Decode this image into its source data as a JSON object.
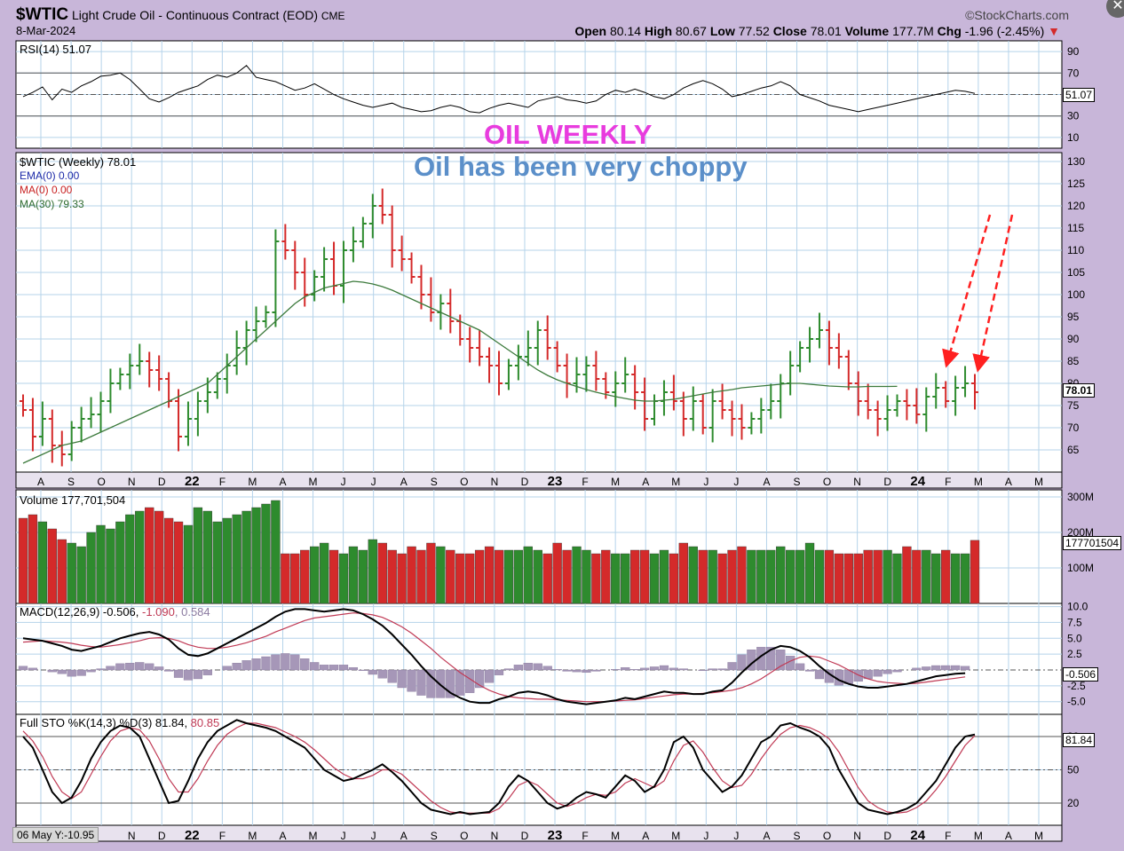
{
  "header": {
    "symbol": "$WTIC",
    "name": "Light Crude Oil - Continuous Contract (EOD)",
    "exchange": "CME",
    "date": "8-Mar-2024",
    "brand": "©StockCharts.com",
    "open_label": "Open",
    "open": "80.14",
    "high_label": "High",
    "high": "80.67",
    "low_label": "Low",
    "low": "77.52",
    "close_label": "Close",
    "close": "78.01",
    "volume_label": "Volume",
    "volume": "177.7M",
    "chg_label": "Chg",
    "chg": "-1.96 (-2.45%)",
    "chg_arrow": "▼"
  },
  "annotations": {
    "title": "OIL WEEKLY",
    "subtitle": "Oil has been very choppy",
    "title_color": "#e83cde",
    "subtitle_color": "#5b8fc9",
    "arrow_color": "#ff2020"
  },
  "colors": {
    "up": "#2e8b2e",
    "down": "#d42a2a",
    "ma": "#3c7a3c",
    "macd": "#000000",
    "signal": "#c03a55",
    "hist": "#a697b8",
    "grid": "#b5d3ea",
    "panel_bg": "#ffffff",
    "frame_bg": "#c8b6d9"
  },
  "legends": {
    "rsi": "RSI(14) 51.07",
    "price": "$WTIC (Weekly) 78.01",
    "ema": "EMA(0) 0.00",
    "ma0": "MA(0) 0.00",
    "ma30": "MA(30) 79.33",
    "volume": "Volume 177,701,504",
    "macd_a": "MACD(12,26,9) -0.506, ",
    "macd_b": "-1.090",
    "macd_c": ", 0.584",
    "sto_a": "Full STO %K(14,3) %D(3) 81.84, ",
    "sto_b": "80.85"
  },
  "last_values": {
    "rsi": "51.07",
    "price": "78.01",
    "volume": "177701504",
    "macd": "-0.506",
    "sto": "81.84"
  },
  "status": "06 May Y:-10.95",
  "close_icon": "close-icon",
  "chart_data": [
    {
      "type": "line",
      "panel": "rsi",
      "ylim": [
        0,
        100
      ],
      "yticks": [
        10,
        30,
        50,
        70,
        90
      ],
      "series": [
        {
          "name": "RSI(14)",
          "values": [
            48,
            52,
            57,
            45,
            55,
            52,
            58,
            62,
            67,
            68,
            70,
            64,
            55,
            46,
            43,
            47,
            52,
            55,
            58,
            64,
            68,
            66,
            70,
            77,
            66,
            64,
            62,
            58,
            54,
            56,
            60,
            55,
            50,
            46,
            43,
            40,
            38,
            40,
            42,
            38,
            36,
            34,
            35,
            38,
            40,
            38,
            34,
            33,
            37,
            40,
            42,
            40,
            38,
            44,
            46,
            48,
            45,
            44,
            42,
            44,
            50,
            54,
            52,
            55,
            52,
            48,
            46,
            50,
            56,
            60,
            63,
            60,
            55,
            48,
            50,
            53,
            56,
            58,
            62,
            58,
            50,
            47,
            44,
            40,
            38,
            36,
            34,
            36,
            38,
            40,
            42,
            44,
            46,
            48,
            50,
            52,
            54,
            53,
            51
          ]
        }
      ]
    },
    {
      "type": "bar",
      "panel": "price",
      "ylim": [
        60,
        132
      ],
      "yticks": [
        65,
        70,
        75,
        80,
        85,
        90,
        95,
        100,
        105,
        110,
        115,
        120,
        125,
        130
      ],
      "x_labels": [
        "A",
        "S",
        "O",
        "N",
        "D",
        "22",
        "F",
        "M",
        "A",
        "M",
        "J",
        "J",
        "A",
        "S",
        "O",
        "N",
        "D",
        "23",
        "F",
        "M",
        "A",
        "M",
        "J",
        "J",
        "A",
        "S",
        "O",
        "N",
        "D",
        "24",
        "F",
        "M",
        "A",
        "M"
      ],
      "series": [
        {
          "name": "$WTIC (Weekly)",
          "close": [
            74,
            68,
            72,
            66,
            64,
            70,
            72,
            73,
            76,
            80,
            82,
            84,
            85,
            83,
            81,
            76,
            68,
            72,
            76,
            78,
            81,
            84,
            88,
            92,
            94,
            96,
            112,
            110,
            105,
            100,
            104,
            108,
            102,
            110,
            112,
            116,
            120,
            118,
            110,
            108,
            104,
            100,
            96,
            98,
            94,
            90,
            88,
            86,
            84,
            80,
            84,
            86,
            88,
            92,
            88,
            84,
            80,
            82,
            84,
            81,
            78,
            80,
            82,
            78,
            72,
            76,
            78,
            76,
            72,
            76,
            70,
            76,
            74,
            72,
            70,
            72,
            74,
            76,
            80,
            84,
            88,
            90,
            92,
            88,
            86,
            80,
            76,
            74,
            72,
            74,
            76,
            75,
            73,
            77,
            79,
            76,
            79,
            80,
            78.01
          ]
        },
        {
          "name": "MA(30)",
          "values": [
            62,
            63,
            64,
            65,
            66,
            66.5,
            67,
            68,
            69,
            70,
            71,
            72,
            73,
            74,
            75,
            76,
            77,
            78,
            79,
            80,
            82,
            84,
            86,
            88,
            90,
            92,
            94,
            96,
            98,
            99.5,
            100.5,
            101.5,
            102,
            102.5,
            103,
            102.8,
            102.4,
            101.8,
            101,
            100,
            99,
            98,
            97,
            96,
            95,
            94,
            93,
            92,
            90.5,
            89,
            87.5,
            86,
            84.5,
            83,
            81.8,
            80.8,
            80,
            79.3,
            78.6,
            78,
            77.5,
            77,
            76.6,
            76.2,
            76,
            76,
            76.2,
            76.4,
            76.8,
            77.2,
            77.6,
            78,
            78.3,
            78.6,
            79,
            79.2,
            79.4,
            79.6,
            79.8,
            80,
            80,
            79.8,
            79.6,
            79.4,
            79.3,
            79.2,
            79.2,
            79.3,
            79.3,
            79.3,
            79.33
          ]
        }
      ]
    },
    {
      "type": "bar",
      "panel": "volume",
      "ylim": [
        0,
        320000000
      ],
      "yticks": [
        100000000,
        200000000,
        300000000
      ],
      "series": [
        {
          "name": "Volume",
          "values": [
            240,
            250,
            230,
            210,
            180,
            170,
            160,
            200,
            220,
            210,
            230,
            250,
            260,
            270,
            260,
            240,
            230,
            220,
            270,
            260,
            230,
            240,
            250,
            260,
            270,
            280,
            290,
            140,
            140,
            150,
            160,
            170,
            150,
            140,
            160,
            150,
            180,
            170,
            150,
            140,
            160,
            150,
            170,
            160,
            150,
            140,
            140,
            150,
            160,
            150,
            150,
            150,
            160,
            150,
            140,
            170,
            150,
            160,
            150,
            140,
            150,
            140,
            140,
            150,
            150,
            140,
            150,
            140,
            170,
            160,
            150,
            150,
            140,
            150,
            160,
            150,
            150,
            150,
            160,
            150,
            150,
            170,
            150,
            150,
            140,
            140,
            140,
            150,
            150,
            150,
            140,
            160,
            150,
            150,
            140,
            150,
            140,
            140,
            177.7
          ]
        }
      ]
    },
    {
      "type": "line",
      "panel": "macd",
      "ylim": [
        -7,
        10.5
      ],
      "yticks": [
        -5,
        -2.5,
        2.5,
        5,
        7.5,
        10
      ],
      "series": [
        {
          "name": "MACD",
          "values": [
            5,
            4.8,
            4.6,
            4.2,
            3.8,
            3.2,
            3,
            3.4,
            3.8,
            4.4,
            5,
            5.4,
            5.8,
            6,
            5.6,
            4.8,
            3.4,
            2.4,
            2.2,
            2.6,
            3.4,
            4.2,
            5,
            5.8,
            6.6,
            7.4,
            8.4,
            9.2,
            9.6,
            9.6,
            9.4,
            9.2,
            9.4,
            9.6,
            9.4,
            8.8,
            8,
            7,
            5.6,
            4,
            2.4,
            0.6,
            -1,
            -2.4,
            -3.6,
            -4.4,
            -5,
            -5.2,
            -5.2,
            -4.6,
            -4.2,
            -3.6,
            -3.4,
            -3.6,
            -4,
            -4.6,
            -5,
            -5.2,
            -5.4,
            -5.2,
            -5,
            -4.8,
            -4.4,
            -4.6,
            -4.2,
            -3.8,
            -3.4,
            -3.6,
            -3.6,
            -3.8,
            -3.8,
            -3.4,
            -3.2,
            -2,
            -0.4,
            1,
            2.2,
            3.2,
            3.8,
            3.6,
            3,
            2,
            0.6,
            -0.6,
            -1.6,
            -2.2,
            -2.6,
            -2.8,
            -2.8,
            -2.6,
            -2.4,
            -2.2,
            -1.8,
            -1.4,
            -1,
            -0.8,
            -0.6,
            -0.506
          ]
        },
        {
          "name": "Signal",
          "values": [
            4.4,
            4.5,
            4.6,
            4.5,
            4.4,
            4.2,
            3.9,
            3.7,
            3.6,
            3.8,
            4,
            4.3,
            4.6,
            5,
            5.1,
            5,
            4.6,
            4,
            3.6,
            3.4,
            3.4,
            3.6,
            3.9,
            4.3,
            4.8,
            5.3,
            6,
            6.6,
            7.2,
            7.8,
            8.2,
            8.4,
            8.6,
            8.8,
            9,
            8.9,
            8.7,
            8.3,
            7.6,
            6.8,
            5.8,
            4.6,
            3.4,
            2,
            0.8,
            -0.4,
            -1.4,
            -2.4,
            -3.2,
            -3.8,
            -4.2,
            -4.4,
            -4.5,
            -4.6,
            -4.6,
            -4.7,
            -4.8,
            -4.9,
            -5,
            -5,
            -5,
            -4.9,
            -4.8,
            -4.7,
            -4.5,
            -4.3,
            -4.1,
            -3.9,
            -3.8,
            -3.8,
            -3.7,
            -3.6,
            -3.4,
            -3.2,
            -2.8,
            -2.2,
            -1.4,
            -0.4,
            0.6,
            1.4,
            2,
            2.2,
            2,
            1.4,
            0.8,
            0,
            -0.8,
            -1.4,
            -1.8,
            -2,
            -2.1,
            -2.2,
            -2.1,
            -1.9,
            -1.7,
            -1.5,
            -1.3,
            -1.09
          ]
        },
        {
          "name": "Histogram",
          "values": [
            0.6,
            0.3,
            0,
            -0.3,
            -0.6,
            -1,
            -0.9,
            -0.3,
            0.2,
            0.6,
            1,
            1.1,
            1.2,
            1,
            0.5,
            -0.2,
            -1.2,
            -1.6,
            -1.4,
            -0.8,
            0,
            0.6,
            1.1,
            1.5,
            1.8,
            2.1,
            2.4,
            2.6,
            2.4,
            1.8,
            1.2,
            0.8,
            0.8,
            0.8,
            0.4,
            -0.1,
            -0.7,
            -1.3,
            -2,
            -2.8,
            -3.4,
            -4,
            -4.4,
            -4.4,
            -4.4,
            -4,
            -3.6,
            -2.8,
            -2,
            -0.8,
            0.2,
            0.8,
            1.1,
            1,
            0.6,
            0.1,
            -0.2,
            -0.3,
            -0.4,
            -0.2,
            0,
            0.1,
            0.4,
            0.1,
            0.3,
            0.5,
            0.7,
            0.3,
            0.2,
            0,
            -0.1,
            0.2,
            0.2,
            1.2,
            2.4,
            3.2,
            3.6,
            3.6,
            3.2,
            2.2,
            1,
            -0.2,
            -1.4,
            -2,
            -2.4,
            -2.2,
            -1.8,
            -1.4,
            -1,
            -0.6,
            -0.3,
            0,
            0.3,
            0.5,
            0.7,
            0.7,
            0.7,
            0.584
          ]
        }
      ]
    },
    {
      "type": "line",
      "panel": "stochastic",
      "ylim": [
        0,
        100
      ],
      "yticks": [
        20,
        50,
        80
      ],
      "series": [
        {
          "name": "%K",
          "values": [
            80,
            70,
            50,
            30,
            20,
            25,
            40,
            60,
            75,
            85,
            90,
            88,
            80,
            60,
            40,
            20,
            22,
            40,
            60,
            75,
            85,
            90,
            95,
            92,
            90,
            88,
            85,
            80,
            75,
            70,
            60,
            50,
            45,
            40,
            42,
            46,
            50,
            55,
            48,
            40,
            30,
            20,
            14,
            12,
            10,
            12,
            10,
            11,
            12,
            20,
            35,
            45,
            40,
            30,
            20,
            15,
            18,
            25,
            30,
            28,
            25,
            35,
            45,
            40,
            30,
            35,
            50,
            75,
            80,
            70,
            50,
            40,
            30,
            35,
            45,
            60,
            75,
            80,
            90,
            92,
            88,
            85,
            80,
            70,
            50,
            35,
            20,
            14,
            12,
            10,
            12,
            15,
            20,
            30,
            40,
            55,
            70,
            80,
            81.84
          ]
        },
        {
          "name": "%D",
          "values": [
            85,
            76,
            62,
            44,
            30,
            24,
            30,
            46,
            62,
            76,
            85,
            88,
            86,
            76,
            60,
            42,
            30,
            30,
            42,
            58,
            72,
            82,
            88,
            92,
            92,
            90,
            88,
            84,
            80,
            75,
            68,
            60,
            52,
            46,
            42,
            42,
            45,
            50,
            50,
            46,
            38,
            30,
            22,
            16,
            12,
            11,
            11,
            11,
            11,
            15,
            24,
            36,
            40,
            36,
            28,
            20,
            17,
            20,
            25,
            28,
            27,
            30,
            38,
            42,
            38,
            34,
            40,
            58,
            72,
            76,
            66,
            52,
            40,
            34,
            36,
            46,
            60,
            72,
            82,
            88,
            90,
            88,
            84,
            78,
            66,
            50,
            34,
            22,
            16,
            12,
            11,
            12,
            16,
            22,
            32,
            44,
            58,
            72,
            80.85
          ]
        }
      ]
    }
  ]
}
